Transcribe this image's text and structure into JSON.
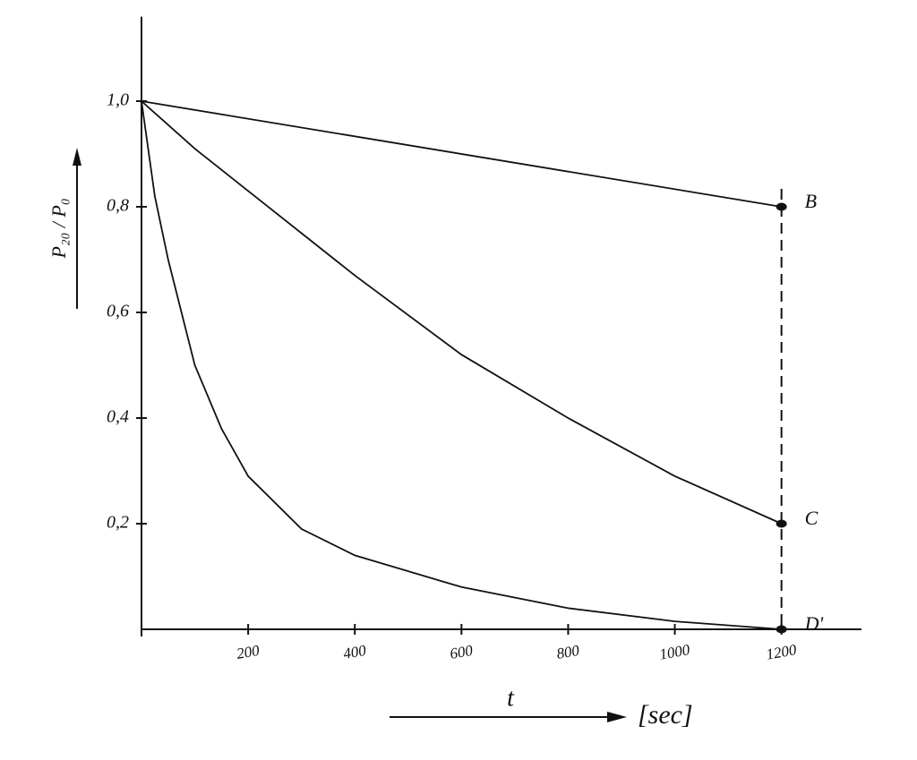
{
  "chart_data": {
    "type": "line",
    "y_label": "P₂₀ / P₀",
    "x_label": "t",
    "x_unit": "[sec]",
    "xlim": [
      0,
      1350
    ],
    "ylim": [
      0,
      1.16
    ],
    "xticks": [
      200,
      400,
      600,
      800,
      1000,
      1200
    ],
    "yticks": [
      {
        "value": 0.2,
        "label": "0,2"
      },
      {
        "value": 0.4,
        "label": "0,4"
      },
      {
        "value": 0.6,
        "label": "0,6"
      },
      {
        "value": 0.8,
        "label": "0,8"
      },
      {
        "value": 1.0,
        "label": "1,0"
      }
    ],
    "series": [
      {
        "name": "B",
        "color": "#111111",
        "x": [
          0,
          1200
        ],
        "values": [
          1.0,
          0.8
        ]
      },
      {
        "name": "C",
        "color": "#111111",
        "x": [
          0,
          100,
          200,
          300,
          400,
          600,
          800,
          1000,
          1200
        ],
        "values": [
          1.0,
          0.91,
          0.83,
          0.75,
          0.67,
          0.52,
          0.4,
          0.29,
          0.2
        ]
      },
      {
        "name": "D'",
        "color": "#111111",
        "x": [
          0,
          25,
          50,
          100,
          150,
          200,
          300,
          400,
          600,
          800,
          1000,
          1200
        ],
        "values": [
          1.0,
          0.82,
          0.7,
          0.5,
          0.38,
          0.29,
          0.19,
          0.14,
          0.08,
          0.04,
          0.015,
          0.0
        ]
      }
    ]
  }
}
